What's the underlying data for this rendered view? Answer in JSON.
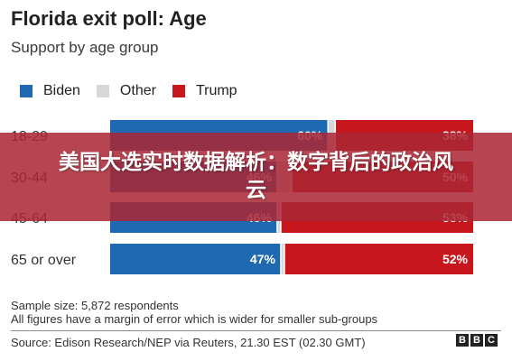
{
  "header": {
    "title": "Florida exit poll: Age",
    "subtitle": "Support by age group"
  },
  "legend": [
    {
      "label": "Biden",
      "color": "#1f69b0"
    },
    {
      "label": "Other",
      "color": "#d7d7d7"
    },
    {
      "label": "Trump",
      "color": "#c8161d"
    }
  ],
  "chart_data": {
    "type": "bar",
    "orientation": "horizontal",
    "stacked": true,
    "title": "Florida exit poll: Age",
    "subtitle": "Support by age group",
    "categories": [
      "18-29",
      "30-44",
      "45-64",
      "65 or over"
    ],
    "series": [
      {
        "name": "Biden",
        "color": "#1f69b0",
        "values": [
          60,
          46,
          46,
          47
        ]
      },
      {
        "name": "Other",
        "color": "#d7d7d7",
        "values": [
          2,
          4,
          1,
          1
        ]
      },
      {
        "name": "Trump",
        "color": "#c8161d",
        "values": [
          38,
          50,
          53,
          52
        ]
      }
    ],
    "value_labels": [
      [
        "60%",
        "",
        "38%"
      ],
      [
        "46%",
        "",
        "50%"
      ],
      [
        "46%",
        "",
        "53%"
      ],
      [
        "47%",
        "",
        "52%"
      ]
    ],
    "xlim": [
      0,
      100
    ],
    "legend_position": "top-left",
    "grid": false
  },
  "footer": {
    "note1": "Sample size: 5,872 respondents",
    "note2": "All figures have a margin of error which is wider for smaller sub-groups",
    "source": "Source: Edison Research/NEP via Reuters, 21.30 EST (02.30 GMT)",
    "logo": [
      "B",
      "B",
      "C"
    ]
  },
  "banner": {
    "text": "美国大选实时数据解析：数字背后的政治风云"
  }
}
